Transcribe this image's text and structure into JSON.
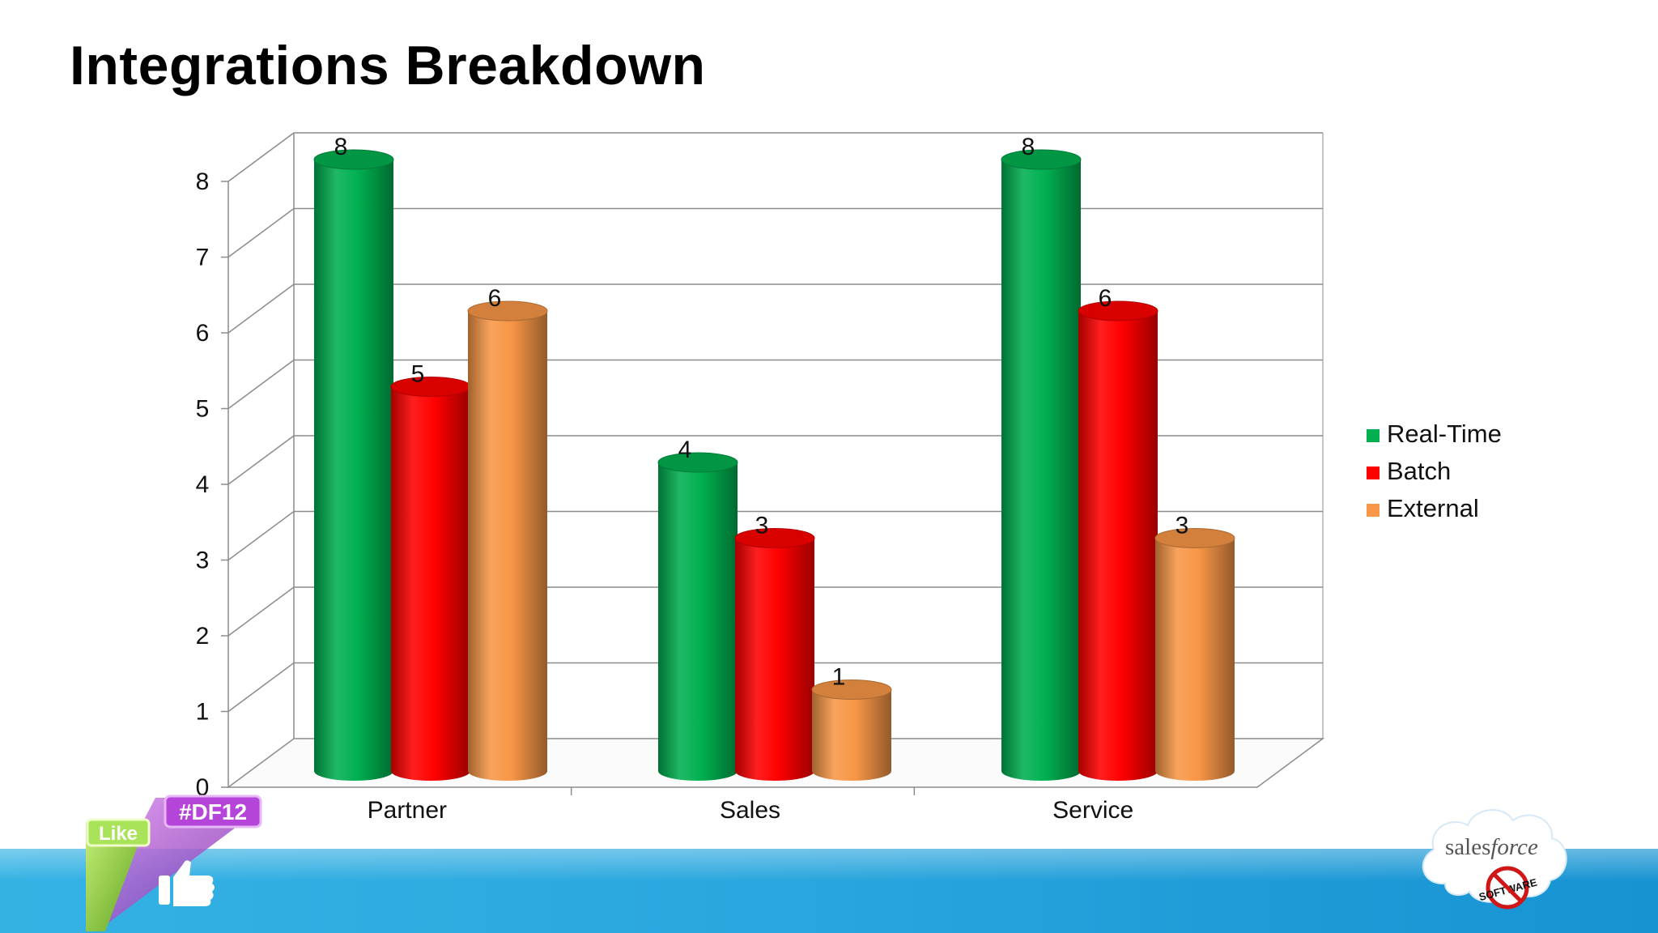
{
  "title": "Integrations Breakdown",
  "chart_data": {
    "type": "bar",
    "style": "3d-cylinder",
    "categories": [
      "Partner",
      "Sales",
      "Service"
    ],
    "series": [
      {
        "name": "Real-Time",
        "values": [
          8,
          4,
          8
        ],
        "color": "#00b050"
      },
      {
        "name": "Batch",
        "values": [
          5,
          3,
          6
        ],
        "color": "#ff0000"
      },
      {
        "name": "External",
        "values": [
          6,
          1,
          3
        ],
        "color": "#f79646"
      }
    ],
    "ylim": [
      0,
      8
    ],
    "yticks": [
      0,
      1,
      2,
      3,
      4,
      5,
      6,
      7,
      8
    ],
    "grid": true,
    "data_labels": true,
    "legend_position": "right"
  },
  "badge": {
    "hashtag": "#DF12",
    "like": "Like"
  },
  "logo": {
    "brand_pre": "sales",
    "brand_post": "force",
    "stamp": "SOFTWARE"
  }
}
